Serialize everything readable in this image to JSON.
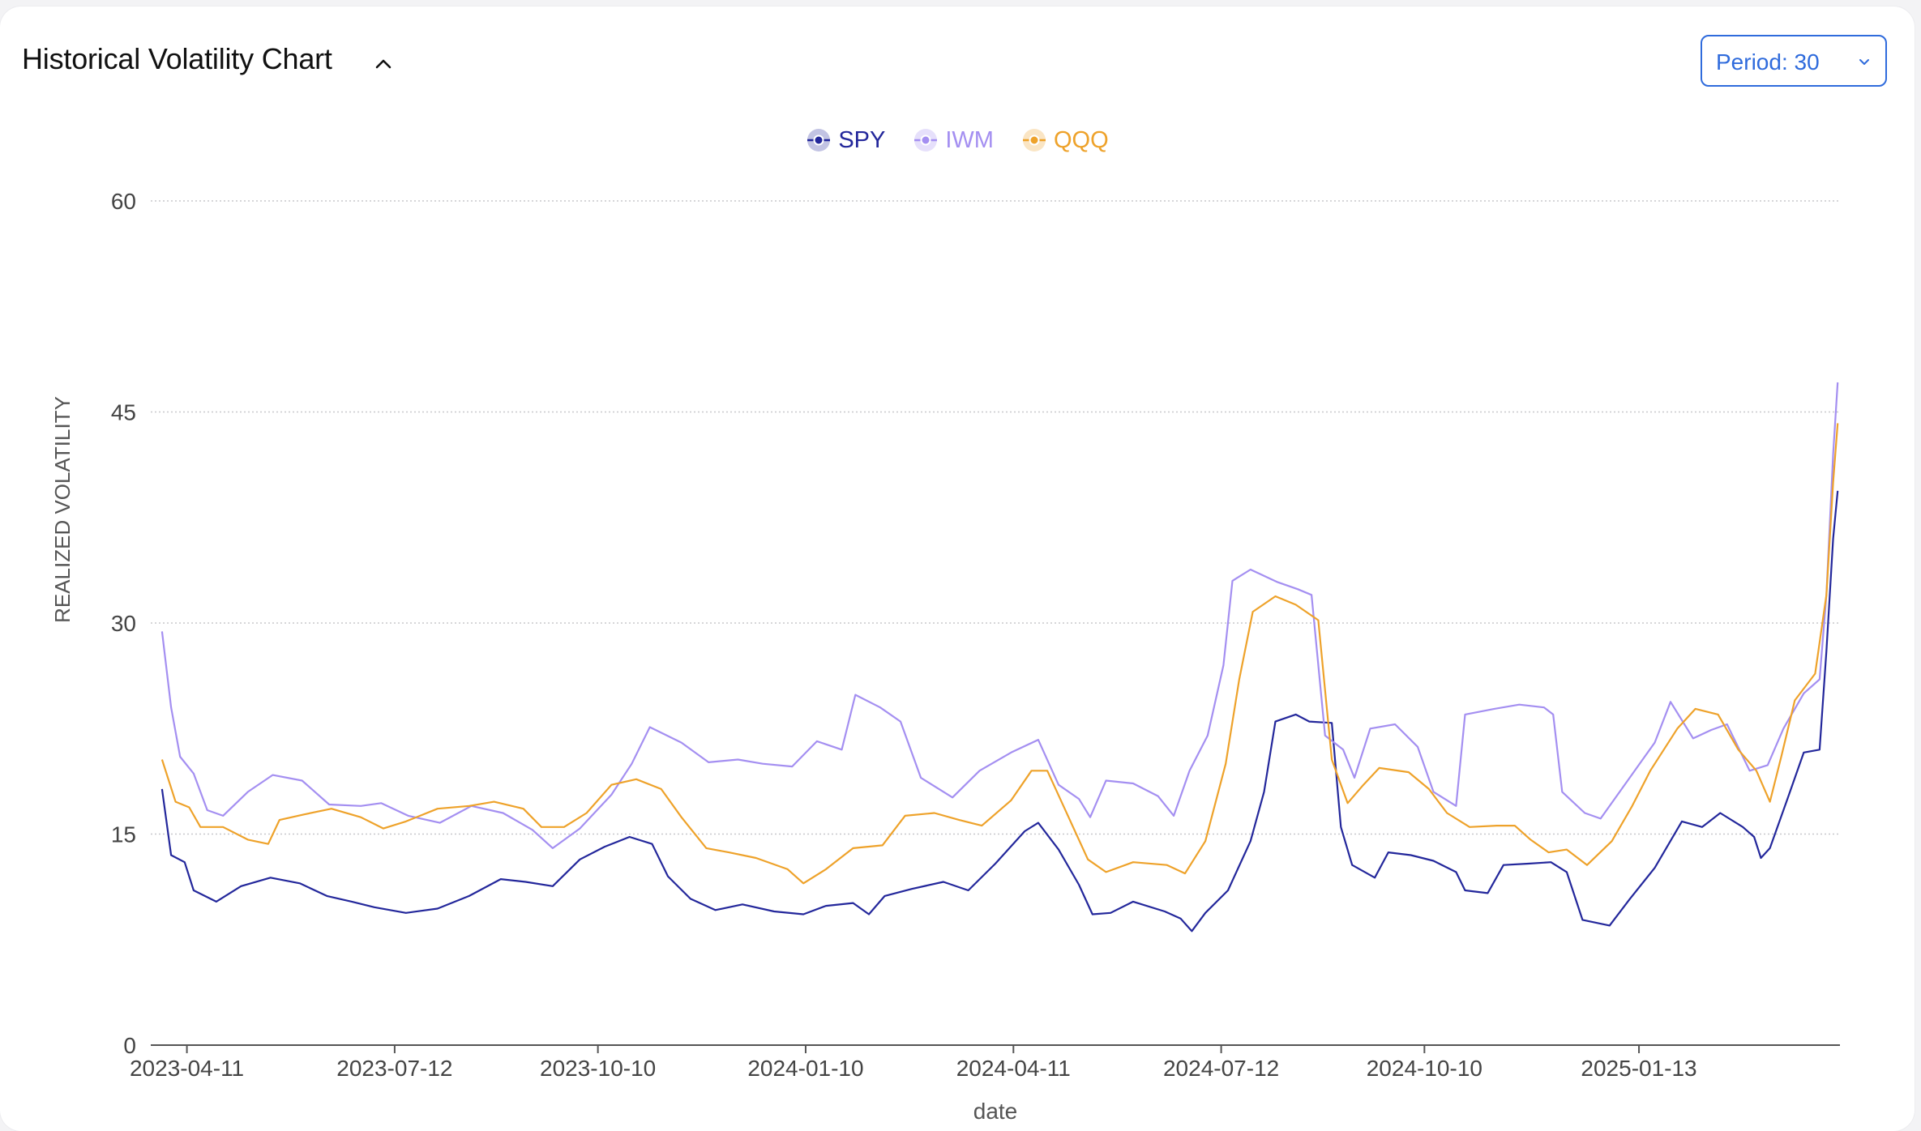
{
  "header": {
    "title": "Historical Volatility Chart",
    "collapse_icon": "chevron-up-icon",
    "period_label": "Period: 30",
    "period_icon": "chevron-down-icon"
  },
  "colors": {
    "SPY": "#23279b",
    "IWM": "#a48ff1",
    "QQQ": "#eea22a",
    "accent": "#2f6bdc",
    "grid": "#c8c8cc",
    "axis_text": "#444444"
  },
  "chart_data": {
    "type": "line",
    "title": "",
    "xlabel": "date",
    "ylabel": "REALIZED VOLATILITY",
    "ylim": [
      0,
      60
    ],
    "yticks": [
      0,
      15,
      30,
      45,
      60
    ],
    "xlim": [
      "2023-03-26",
      "2025-04-12"
    ],
    "xticks": [
      "2023-04-11",
      "2023-07-12",
      "2023-10-10",
      "2024-01-10",
      "2024-04-11",
      "2024-07-12",
      "2024-10-10",
      "2025-01-13"
    ],
    "grid": "horizontal-dotted",
    "legend_position": "top-center",
    "series": [
      {
        "name": "SPY",
        "points": [
          [
            "2023-03-31",
            18.2
          ],
          [
            "2023-04-04",
            13.5
          ],
          [
            "2023-04-10",
            13.0
          ],
          [
            "2023-04-14",
            11.0
          ],
          [
            "2023-04-24",
            10.2
          ],
          [
            "2023-05-05",
            11.3
          ],
          [
            "2023-05-18",
            11.9
          ],
          [
            "2023-05-31",
            11.5
          ],
          [
            "2023-06-12",
            10.6
          ],
          [
            "2023-06-23",
            10.2
          ],
          [
            "2023-07-03",
            9.8
          ],
          [
            "2023-07-17",
            9.4
          ],
          [
            "2023-07-31",
            9.7
          ],
          [
            "2023-08-14",
            10.6
          ],
          [
            "2023-08-28",
            11.8
          ],
          [
            "2023-09-08",
            11.6
          ],
          [
            "2023-09-20",
            11.3
          ],
          [
            "2023-10-02",
            13.2
          ],
          [
            "2023-10-13",
            14.1
          ],
          [
            "2023-10-24",
            14.8
          ],
          [
            "2023-11-03",
            14.3
          ],
          [
            "2023-11-10",
            12.0
          ],
          [
            "2023-11-20",
            10.4
          ],
          [
            "2023-12-01",
            9.6
          ],
          [
            "2023-12-13",
            10.0
          ],
          [
            "2023-12-27",
            9.5
          ],
          [
            "2024-01-09",
            9.3
          ],
          [
            "2024-01-19",
            9.9
          ],
          [
            "2024-01-31",
            10.1
          ],
          [
            "2024-02-07",
            9.3
          ],
          [
            "2024-02-14",
            10.6
          ],
          [
            "2024-02-26",
            11.1
          ],
          [
            "2024-03-11",
            11.6
          ],
          [
            "2024-03-22",
            11.0
          ],
          [
            "2024-04-03",
            12.9
          ],
          [
            "2024-04-16",
            15.2
          ],
          [
            "2024-04-22",
            15.8
          ],
          [
            "2024-05-01",
            13.9
          ],
          [
            "2024-05-10",
            11.4
          ],
          [
            "2024-05-16",
            9.3
          ],
          [
            "2024-05-24",
            9.4
          ],
          [
            "2024-06-03",
            10.2
          ],
          [
            "2024-06-17",
            9.5
          ],
          [
            "2024-06-24",
            9.0
          ],
          [
            "2024-06-29",
            8.1
          ],
          [
            "2024-07-05",
            9.4
          ],
          [
            "2024-07-15",
            11.0
          ],
          [
            "2024-07-25",
            14.5
          ],
          [
            "2024-07-31",
            18.0
          ],
          [
            "2024-08-05",
            23.0
          ],
          [
            "2024-08-14",
            23.5
          ],
          [
            "2024-08-20",
            23.0
          ],
          [
            "2024-08-30",
            22.9
          ],
          [
            "2024-09-03",
            15.5
          ],
          [
            "2024-09-08",
            12.8
          ],
          [
            "2024-09-18",
            11.9
          ],
          [
            "2024-09-24",
            13.7
          ],
          [
            "2024-10-04",
            13.5
          ],
          [
            "2024-10-14",
            13.1
          ],
          [
            "2024-10-24",
            12.3
          ],
          [
            "2024-10-28",
            11.0
          ],
          [
            "2024-11-07",
            10.8
          ],
          [
            "2024-11-14",
            12.8
          ],
          [
            "2024-11-25",
            12.9
          ],
          [
            "2024-12-05",
            13.0
          ],
          [
            "2024-12-12",
            12.3
          ],
          [
            "2024-12-19",
            8.9
          ],
          [
            "2024-12-31",
            8.5
          ],
          [
            "2025-01-09",
            10.4
          ],
          [
            "2025-01-20",
            12.6
          ],
          [
            "2025-02-01",
            15.9
          ],
          [
            "2025-02-10",
            15.5
          ],
          [
            "2025-02-18",
            16.5
          ],
          [
            "2025-02-28",
            15.5
          ],
          [
            "2025-03-05",
            14.8
          ],
          [
            "2025-03-08",
            13.3
          ],
          [
            "2025-03-12",
            14.0
          ],
          [
            "2025-03-20",
            17.6
          ],
          [
            "2025-03-27",
            20.8
          ],
          [
            "2025-04-03",
            21.0
          ],
          [
            "2025-04-06",
            28.0
          ],
          [
            "2025-04-09",
            36.0
          ],
          [
            "2025-04-11",
            39.4
          ]
        ]
      },
      {
        "name": "IWM",
        "points": [
          [
            "2023-03-31",
            29.4
          ],
          [
            "2023-04-04",
            24.0
          ],
          [
            "2023-04-08",
            20.5
          ],
          [
            "2023-04-14",
            19.3
          ],
          [
            "2023-04-20",
            16.7
          ],
          [
            "2023-04-27",
            16.3
          ],
          [
            "2023-05-08",
            18.0
          ],
          [
            "2023-05-19",
            19.2
          ],
          [
            "2023-06-01",
            18.8
          ],
          [
            "2023-06-13",
            17.1
          ],
          [
            "2023-06-27",
            17.0
          ],
          [
            "2023-07-06",
            17.2
          ],
          [
            "2023-07-18",
            16.3
          ],
          [
            "2023-08-01",
            15.8
          ],
          [
            "2023-08-15",
            17.0
          ],
          [
            "2023-08-29",
            16.5
          ],
          [
            "2023-09-11",
            15.3
          ],
          [
            "2023-09-20",
            14.0
          ],
          [
            "2023-10-02",
            15.4
          ],
          [
            "2023-10-16",
            17.8
          ],
          [
            "2023-10-25",
            20.0
          ],
          [
            "2023-11-02",
            22.6
          ],
          [
            "2023-11-16",
            21.5
          ],
          [
            "2023-11-28",
            20.1
          ],
          [
            "2023-12-11",
            20.3
          ],
          [
            "2023-12-22",
            20.0
          ],
          [
            "2024-01-04",
            19.8
          ],
          [
            "2024-01-15",
            21.6
          ],
          [
            "2024-01-26",
            21.0
          ],
          [
            "2024-02-01",
            24.9
          ],
          [
            "2024-02-12",
            24.0
          ],
          [
            "2024-02-21",
            23.0
          ],
          [
            "2024-03-01",
            19.0
          ],
          [
            "2024-03-15",
            17.6
          ],
          [
            "2024-03-27",
            19.5
          ],
          [
            "2024-04-10",
            20.8
          ],
          [
            "2024-04-22",
            21.7
          ],
          [
            "2024-05-01",
            18.5
          ],
          [
            "2024-05-10",
            17.5
          ],
          [
            "2024-05-15",
            16.2
          ],
          [
            "2024-05-22",
            18.8
          ],
          [
            "2024-06-03",
            18.6
          ],
          [
            "2024-06-14",
            17.7
          ],
          [
            "2024-06-21",
            16.3
          ],
          [
            "2024-06-28",
            19.5
          ],
          [
            "2024-07-06",
            22.0
          ],
          [
            "2024-07-13",
            27.0
          ],
          [
            "2024-07-17",
            33.0
          ],
          [
            "2024-07-25",
            33.8
          ],
          [
            "2024-08-06",
            32.9
          ],
          [
            "2024-08-15",
            32.4
          ],
          [
            "2024-08-21",
            32.0
          ],
          [
            "2024-08-27",
            22.0
          ],
          [
            "2024-09-04",
            21.0
          ],
          [
            "2024-09-09",
            19.0
          ],
          [
            "2024-09-16",
            22.5
          ],
          [
            "2024-09-27",
            22.8
          ],
          [
            "2024-10-07",
            21.2
          ],
          [
            "2024-10-14",
            18.0
          ],
          [
            "2024-10-24",
            17.0
          ],
          [
            "2024-10-28",
            23.5
          ],
          [
            "2024-11-10",
            23.9
          ],
          [
            "2024-11-21",
            24.2
          ],
          [
            "2024-12-02",
            24.0
          ],
          [
            "2024-12-06",
            23.5
          ],
          [
            "2024-12-10",
            18.0
          ],
          [
            "2024-12-20",
            16.5
          ],
          [
            "2024-12-27",
            16.1
          ],
          [
            "2025-01-08",
            18.8
          ],
          [
            "2025-01-20",
            21.5
          ],
          [
            "2025-01-27",
            24.4
          ],
          [
            "2025-02-06",
            21.8
          ],
          [
            "2025-02-14",
            22.4
          ],
          [
            "2025-02-21",
            22.8
          ],
          [
            "2025-03-03",
            19.5
          ],
          [
            "2025-03-11",
            19.9
          ],
          [
            "2025-03-18",
            22.5
          ],
          [
            "2025-03-27",
            25.0
          ],
          [
            "2025-04-03",
            26.0
          ],
          [
            "2025-04-06",
            32.0
          ],
          [
            "2025-04-09",
            42.0
          ],
          [
            "2025-04-11",
            47.1
          ]
        ]
      },
      {
        "name": "QQQ",
        "points": [
          [
            "2023-03-31",
            20.3
          ],
          [
            "2023-04-06",
            17.3
          ],
          [
            "2023-04-12",
            16.9
          ],
          [
            "2023-04-17",
            15.5
          ],
          [
            "2023-04-27",
            15.5
          ],
          [
            "2023-05-08",
            14.6
          ],
          [
            "2023-05-17",
            14.3
          ],
          [
            "2023-05-22",
            16.0
          ],
          [
            "2023-06-02",
            16.4
          ],
          [
            "2023-06-14",
            16.8
          ],
          [
            "2023-06-27",
            16.2
          ],
          [
            "2023-07-07",
            15.4
          ],
          [
            "2023-07-17",
            15.9
          ],
          [
            "2023-07-31",
            16.8
          ],
          [
            "2023-08-14",
            17.0
          ],
          [
            "2023-08-25",
            17.3
          ],
          [
            "2023-09-07",
            16.8
          ],
          [
            "2023-09-15",
            15.5
          ],
          [
            "2023-09-25",
            15.5
          ],
          [
            "2023-10-05",
            16.5
          ],
          [
            "2023-10-16",
            18.5
          ],
          [
            "2023-10-27",
            18.9
          ],
          [
            "2023-11-07",
            18.2
          ],
          [
            "2023-11-16",
            16.2
          ],
          [
            "2023-11-27",
            14.0
          ],
          [
            "2023-12-07",
            13.7
          ],
          [
            "2023-12-19",
            13.3
          ],
          [
            "2024-01-02",
            12.5
          ],
          [
            "2024-01-09",
            11.5
          ],
          [
            "2024-01-19",
            12.5
          ],
          [
            "2024-01-31",
            14.0
          ],
          [
            "2024-02-13",
            14.2
          ],
          [
            "2024-02-23",
            16.3
          ],
          [
            "2024-03-07",
            16.5
          ],
          [
            "2024-03-18",
            16.0
          ],
          [
            "2024-03-28",
            15.6
          ],
          [
            "2024-04-10",
            17.4
          ],
          [
            "2024-04-19",
            19.5
          ],
          [
            "2024-04-26",
            19.5
          ],
          [
            "2024-05-06",
            16.0
          ],
          [
            "2024-05-14",
            13.2
          ],
          [
            "2024-05-22",
            12.3
          ],
          [
            "2024-06-03",
            13.0
          ],
          [
            "2024-06-18",
            12.8
          ],
          [
            "2024-06-26",
            12.2
          ],
          [
            "2024-07-05",
            14.5
          ],
          [
            "2024-07-14",
            20.0
          ],
          [
            "2024-07-20",
            26.0
          ],
          [
            "2024-07-26",
            30.8
          ],
          [
            "2024-08-05",
            31.9
          ],
          [
            "2024-08-14",
            31.3
          ],
          [
            "2024-08-24",
            30.2
          ],
          [
            "2024-08-30",
            20.3
          ],
          [
            "2024-09-06",
            17.2
          ],
          [
            "2024-09-13",
            18.5
          ],
          [
            "2024-09-20",
            19.7
          ],
          [
            "2024-10-03",
            19.4
          ],
          [
            "2024-10-12",
            18.2
          ],
          [
            "2024-10-20",
            16.5
          ],
          [
            "2024-10-30",
            15.5
          ],
          [
            "2024-11-11",
            15.6
          ],
          [
            "2024-11-19",
            15.6
          ],
          [
            "2024-11-26",
            14.6
          ],
          [
            "2024-12-04",
            13.7
          ],
          [
            "2024-12-12",
            13.9
          ],
          [
            "2024-12-21",
            12.8
          ],
          [
            "2025-01-01",
            14.5
          ],
          [
            "2025-01-10",
            17.0
          ],
          [
            "2025-01-18",
            19.5
          ],
          [
            "2025-01-30",
            22.5
          ],
          [
            "2025-02-07",
            23.9
          ],
          [
            "2025-02-17",
            23.5
          ],
          [
            "2025-02-26",
            21.0
          ],
          [
            "2025-03-06",
            19.5
          ],
          [
            "2025-03-12",
            17.3
          ],
          [
            "2025-03-17",
            20.5
          ],
          [
            "2025-03-23",
            24.5
          ],
          [
            "2025-04-01",
            26.4
          ],
          [
            "2025-04-06",
            32.0
          ],
          [
            "2025-04-09",
            40.0
          ],
          [
            "2025-04-11",
            44.2
          ]
        ]
      }
    ]
  }
}
